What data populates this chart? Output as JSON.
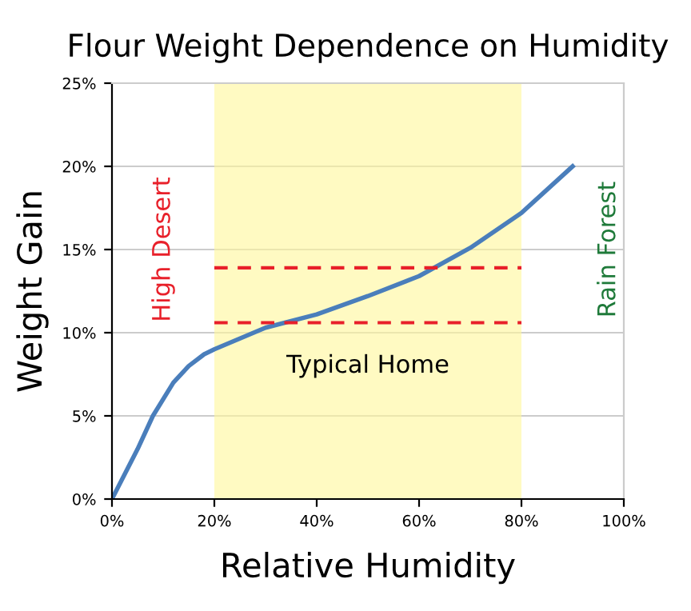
{
  "chart_data": {
    "type": "line",
    "title": "Flour Weight Dependence on Humidity",
    "xlabel": "Relative Humidity",
    "ylabel": "Weight Gain",
    "x": [
      0,
      5,
      8,
      12,
      15,
      18,
      20,
      30,
      40,
      50,
      60,
      70,
      80,
      90
    ],
    "series": [
      {
        "color": "#4a7ebb",
        "values": [
          0,
          3,
          5,
          7,
          8,
          8.7,
          9,
          10.3,
          11.1,
          12.2,
          13.4,
          15.1,
          17.2,
          20
        ]
      }
    ],
    "xlim": [
      0,
      100
    ],
    "ylim": [
      0,
      25
    ],
    "xticks": [
      {
        "value": 0,
        "label": "0%"
      },
      {
        "value": 20,
        "label": "20%"
      },
      {
        "value": 40,
        "label": "40%"
      },
      {
        "value": 60,
        "label": "60%"
      },
      {
        "value": 80,
        "label": "80%"
      },
      {
        "value": 100,
        "label": "100%"
      }
    ],
    "yticks": [
      {
        "value": 0,
        "label": "0%"
      },
      {
        "value": 5,
        "label": "5%"
      },
      {
        "value": 10,
        "label": "10%"
      },
      {
        "value": 15,
        "label": "15%"
      },
      {
        "value": 20,
        "label": "20%"
      },
      {
        "value": 25,
        "label": "25%"
      }
    ],
    "grid": "y",
    "marker": "none",
    "line_style": "solid",
    "bands": [
      {
        "axis": "x",
        "from": 20,
        "to": 80,
        "label": "Typical Home",
        "color": "#fff799"
      }
    ],
    "ref_lines": [
      {
        "axis": "y",
        "value": 13.9,
        "color": "#e8202a",
        "line_style": "dashed"
      },
      {
        "axis": "y",
        "value": 10.6,
        "color": "#e8202a",
        "line_style": "dashed"
      }
    ],
    "annotations": [
      "High Desert",
      "Rain Forest"
    ]
  }
}
